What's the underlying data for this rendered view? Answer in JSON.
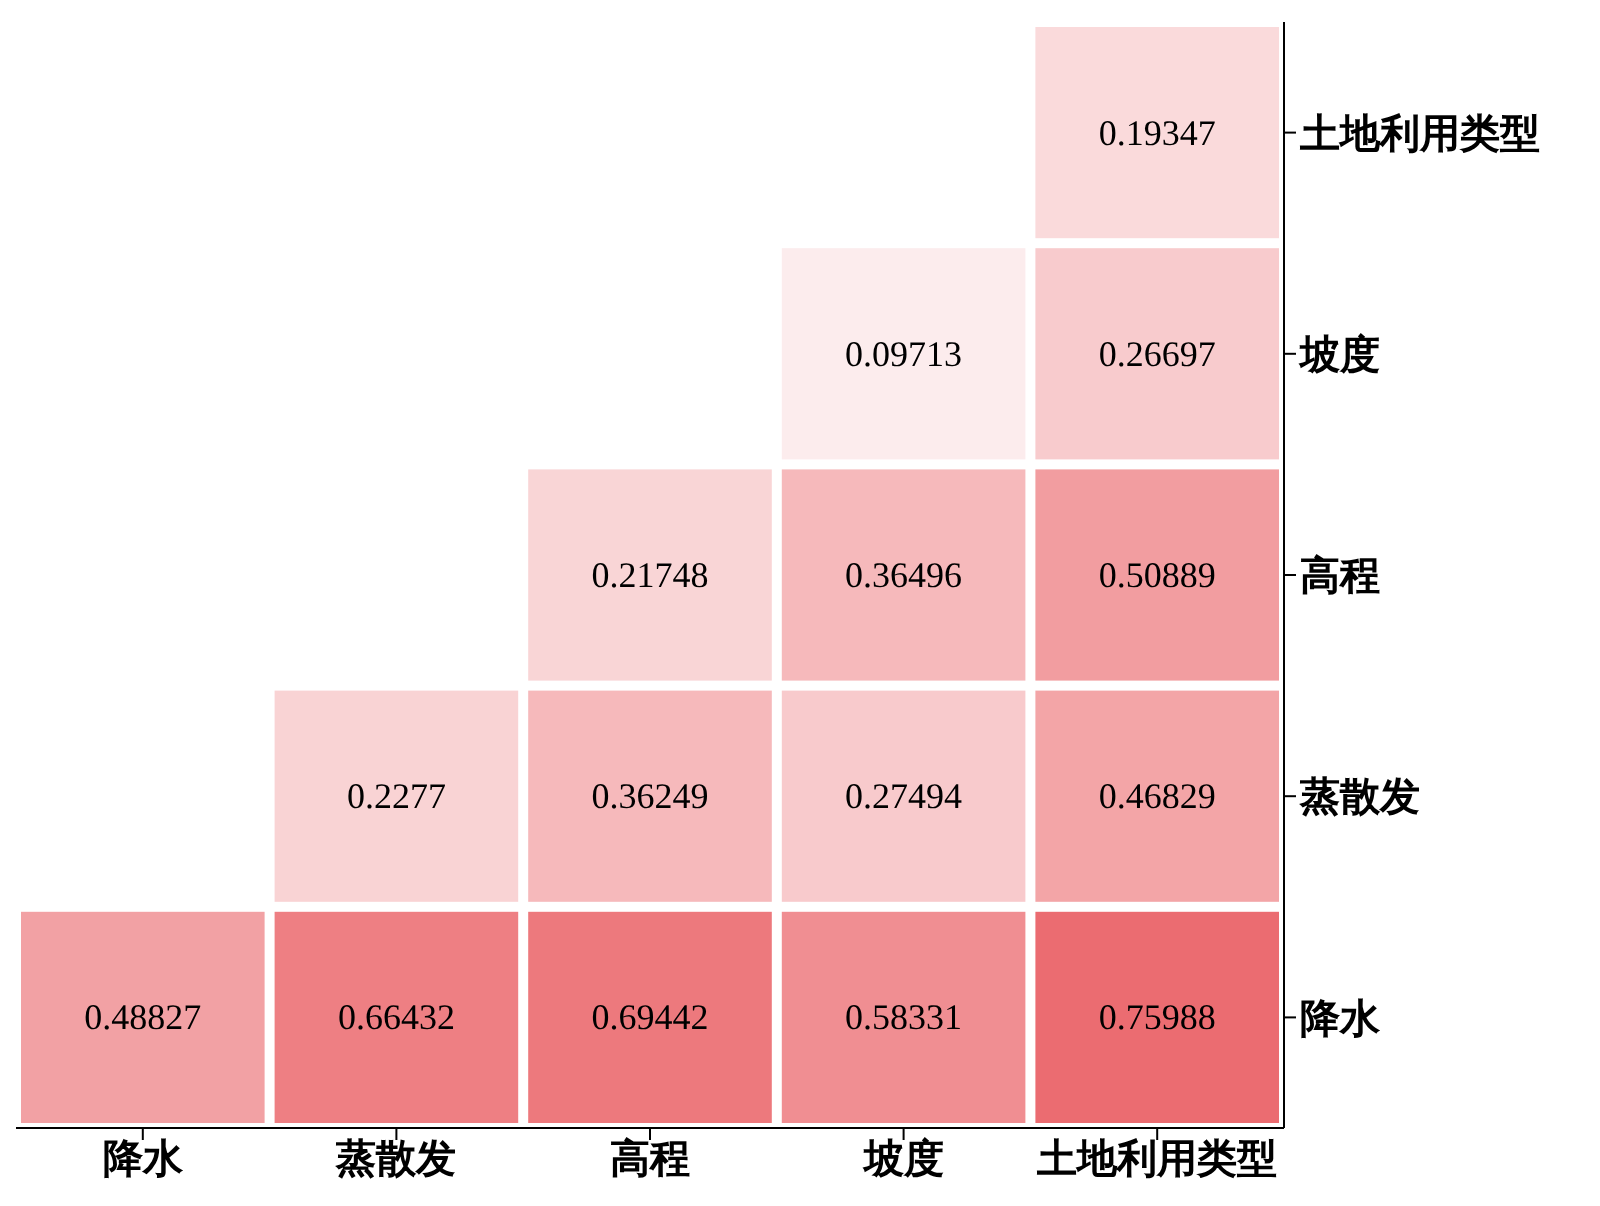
{
  "chart_data": {
    "type": "heatmap",
    "categories": [
      "降水",
      "蒸散发",
      "高程",
      "坡度",
      "土地利用类型"
    ],
    "y_categories": [
      "土地利用类型",
      "坡度",
      "高程",
      "蒸散发",
      "降水"
    ],
    "cells": [
      [
        null,
        null,
        null,
        null,
        0.19347
      ],
      [
        null,
        null,
        null,
        0.09713,
        0.26697
      ],
      [
        null,
        null,
        0.21748,
        0.36496,
        0.50889
      ],
      [
        null,
        0.2277,
        0.36249,
        0.27494,
        0.46829
      ],
      [
        0.48827,
        0.66432,
        0.69442,
        0.58331,
        0.75988
      ]
    ],
    "color": "#e53e44",
    "grid": false,
    "data_labels": true
  }
}
